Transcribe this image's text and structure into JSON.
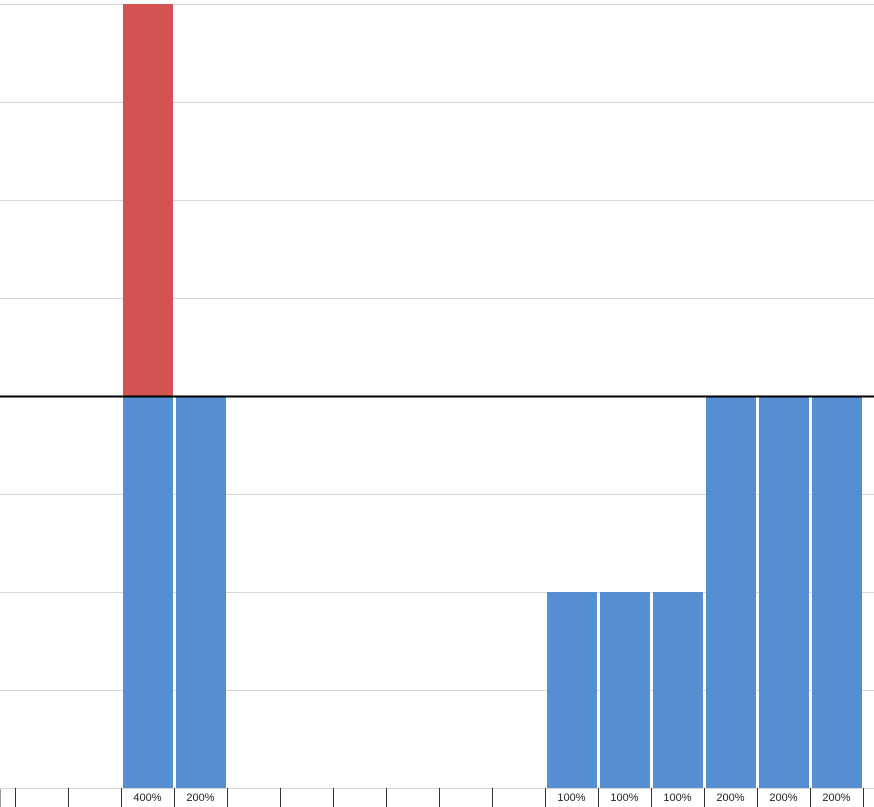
{
  "chart_data": {
    "type": "bar",
    "stacked": true,
    "series": [
      {
        "color": "#558ed1",
        "values": [
          null,
          null,
          200,
          200,
          null,
          null,
          null,
          null,
          null,
          null,
          100,
          100,
          100,
          200,
          200,
          200
        ]
      },
      {
        "color": "#d35252",
        "values": [
          null,
          null,
          200,
          null,
          null,
          null,
          null,
          null,
          null,
          null,
          null,
          null,
          null,
          null,
          null,
          null
        ]
      }
    ],
    "totals": [
      null,
      null,
      400,
      200,
      null,
      null,
      null,
      null,
      null,
      null,
      100,
      100,
      100,
      200,
      200,
      200
    ],
    "total_labels": [
      null,
      null,
      "400%",
      "200%",
      null,
      null,
      null,
      null,
      null,
      null,
      "100%",
      "100%",
      "100%",
      "200%",
      "200%",
      "200%"
    ],
    "ylim": [
      0,
      400
    ],
    "yticks": [
      0,
      50,
      100,
      150,
      200,
      250,
      300,
      350,
      400
    ],
    "grid": true,
    "threshold": 200
  }
}
